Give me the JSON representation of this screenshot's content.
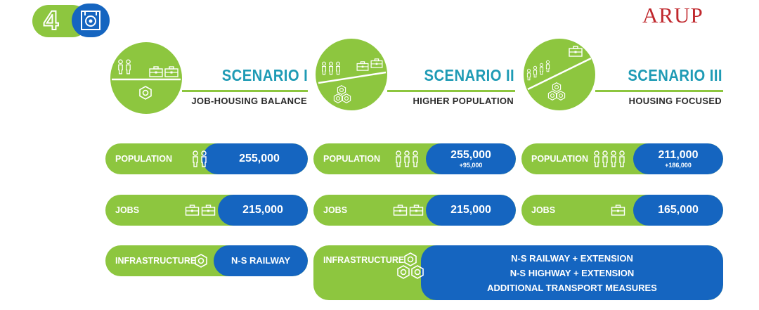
{
  "badge": {
    "number": "4",
    "icon": "analysis-target-icon"
  },
  "logo": {
    "text": "ARUP"
  },
  "colors": {
    "green": "#8dc63f",
    "blue": "#1565c0",
    "title_teal": "#1f9bb5",
    "logo_red": "#c0282d"
  },
  "scenarios": [
    {
      "title": "SCENARIO I",
      "subtitle": "JOB-HOUSING BALANCE",
      "population": {
        "label": "POPULATION",
        "value": "255,000",
        "delta": ""
      },
      "jobs": {
        "label": "JOBS",
        "value": "215,000"
      },
      "infrastructure": {
        "label": "INFRASTRUCTURE",
        "items": [
          "N-S RAILWAY"
        ]
      }
    },
    {
      "title": "SCENARIO II",
      "subtitle": "HIGHER POPULATION",
      "population": {
        "label": "POPULATION",
        "value": "255,000",
        "delta": "+95,000"
      },
      "jobs": {
        "label": "JOBS",
        "value": "215,000"
      }
    },
    {
      "title": "SCENARIO III",
      "subtitle": "HOUSING FOCUSED",
      "population": {
        "label": "POPULATION",
        "value": "211,000",
        "delta": "+186,000"
      },
      "jobs": {
        "label": "JOBS",
        "value": "165,000"
      }
    }
  ],
  "shared_infrastructure": {
    "label": "INFRASTRUCTURE",
    "items": [
      "N-S RAILWAY + EXTENSION",
      "N-S HIGHWAY + EXTENSION",
      "ADDITIONAL TRANSPORT MEASURES"
    ]
  }
}
